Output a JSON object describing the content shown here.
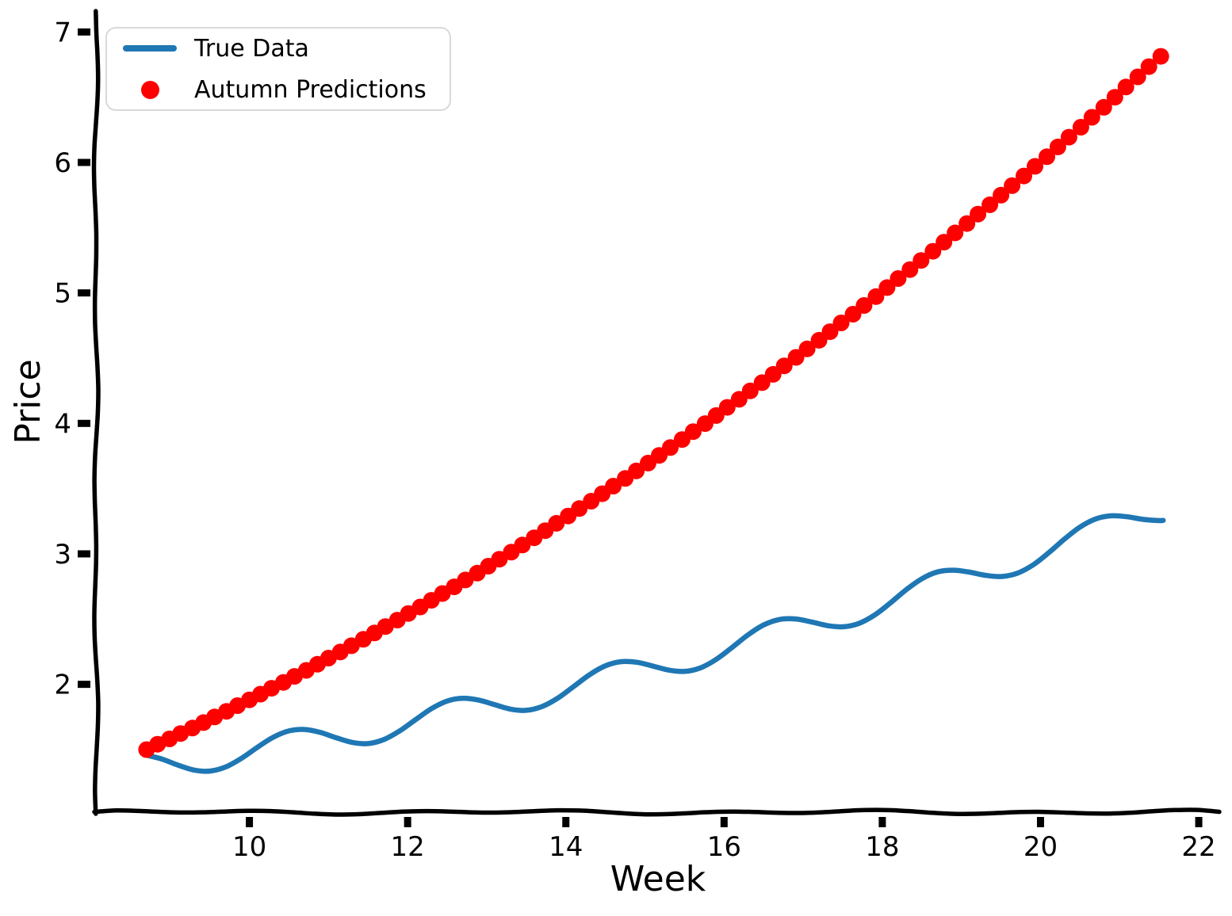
{
  "chart_data": {
    "type": "line",
    "title": "",
    "xlabel": "Week",
    "ylabel": "Price",
    "xlim": [
      8.06,
      22.26
    ],
    "ylim": [
      1.02,
      7.16
    ],
    "x_ticks": [
      10,
      12,
      14,
      16,
      18,
      20,
      22
    ],
    "y_ticks": [
      2,
      3,
      4,
      5,
      6,
      7
    ],
    "grid": false,
    "style": "xkcd-sketch",
    "colors": {
      "axis": "#000000",
      "background": "#ffffff",
      "legend_border": "#d9d9d9",
      "text": "#000000",
      "true_data": "#1f77b4",
      "predictions": "#ff0000"
    },
    "legend": {
      "position": "upper-left",
      "entries": [
        {
          "label": "True Data",
          "marker": "line",
          "color": "#1f77b4"
        },
        {
          "label": "Autumn Predictions",
          "marker": "dot",
          "color": "#ff0000"
        }
      ]
    },
    "series": [
      {
        "name": "True Data",
        "type": "line",
        "color": "#1f77b4",
        "x": [
          8.7,
          8.9,
          9.1,
          9.3,
          9.5,
          9.7,
          9.9,
          10.1,
          10.3,
          10.5,
          10.7,
          10.9,
          11.1,
          11.3,
          11.5,
          11.7,
          11.9,
          12.1,
          12.3,
          12.5,
          12.7,
          12.9,
          13.1,
          13.3,
          13.5,
          13.7,
          13.9,
          14.1,
          14.3,
          14.5,
          14.7,
          14.9,
          15.1,
          15.3,
          15.5,
          15.7,
          15.9,
          16.1,
          16.3,
          16.5,
          16.7,
          16.9,
          17.1,
          17.3,
          17.5,
          17.7,
          17.9,
          18.1,
          18.3,
          18.5,
          18.7,
          18.9,
          19.1,
          19.3,
          19.5,
          19.7,
          19.9,
          20.1,
          20.3,
          20.5,
          20.7,
          20.9,
          21.1,
          21.3,
          21.5,
          21.55
        ],
        "y": [
          1.457,
          1.426,
          1.38,
          1.343,
          1.335,
          1.367,
          1.433,
          1.517,
          1.594,
          1.643,
          1.654,
          1.631,
          1.59,
          1.555,
          1.546,
          1.577,
          1.643,
          1.729,
          1.813,
          1.872,
          1.893,
          1.879,
          1.844,
          1.81,
          1.801,
          1.83,
          1.895,
          1.984,
          2.074,
          2.142,
          2.174,
          2.169,
          2.14,
          2.109,
          2.099,
          2.126,
          2.191,
          2.282,
          2.378,
          2.455,
          2.497,
          2.501,
          2.479,
          2.451,
          2.441,
          2.466,
          2.53,
          2.623,
          2.724,
          2.809,
          2.862,
          2.875,
          2.86,
          2.836,
          2.826,
          2.85,
          2.913,
          3.007,
          3.112,
          3.206,
          3.268,
          3.292,
          3.284,
          3.264,
          3.255,
          3.257
        ]
      },
      {
        "name": "Autumn Predictions",
        "type": "scatter",
        "marker": "circle",
        "color": "#ff0000",
        "x": [
          8.7,
          8.84,
          8.99,
          9.13,
          9.28,
          9.42,
          9.56,
          9.71,
          9.85,
          10.0,
          10.14,
          10.28,
          10.43,
          10.57,
          10.72,
          10.86,
          11.0,
          11.15,
          11.29,
          11.44,
          11.58,
          11.72,
          11.87,
          12.01,
          12.16,
          12.3,
          12.44,
          12.59,
          12.73,
          12.88,
          13.02,
          13.16,
          13.31,
          13.45,
          13.6,
          13.74,
          13.88,
          14.03,
          14.17,
          14.32,
          14.46,
          14.6,
          14.75,
          14.89,
          15.04,
          15.18,
          15.32,
          15.47,
          15.61,
          15.76,
          15.9,
          16.04,
          16.19,
          16.33,
          16.48,
          16.62,
          16.76,
          16.91,
          17.05,
          17.2,
          17.34,
          17.48,
          17.63,
          17.77,
          17.92,
          18.06,
          18.2,
          18.35,
          18.49,
          18.64,
          18.78,
          18.92,
          19.07,
          19.21,
          19.36,
          19.5,
          19.64,
          19.79,
          19.93,
          20.08,
          20.22,
          20.36,
          20.51,
          20.65,
          20.8,
          20.94,
          21.08,
          21.23,
          21.37,
          21.52
        ],
        "y": [
          1.5,
          1.541,
          1.582,
          1.623,
          1.665,
          1.707,
          1.75,
          1.793,
          1.837,
          1.881,
          1.925,
          1.97,
          2.015,
          2.061,
          2.107,
          2.154,
          2.201,
          2.248,
          2.296,
          2.345,
          2.394,
          2.443,
          2.492,
          2.543,
          2.593,
          2.644,
          2.696,
          2.747,
          2.8,
          2.852,
          2.906,
          2.959,
          3.013,
          3.068,
          3.123,
          3.178,
          3.234,
          3.29,
          3.347,
          3.404,
          3.461,
          3.519,
          3.578,
          3.636,
          3.696,
          3.755,
          3.815,
          3.876,
          3.937,
          3.998,
          4.06,
          4.123,
          4.185,
          4.249,
          4.312,
          4.376,
          4.441,
          4.506,
          4.571,
          4.637,
          4.703,
          4.77,
          4.837,
          4.904,
          4.972,
          5.041,
          5.11,
          5.179,
          5.249,
          5.319,
          5.389,
          5.46,
          5.532,
          5.604,
          5.676,
          5.749,
          5.822,
          5.896,
          5.97,
          6.044,
          6.119,
          6.194,
          6.27,
          6.346,
          6.423,
          6.5,
          6.578,
          6.656,
          6.734,
          6.813
        ]
      }
    ]
  }
}
